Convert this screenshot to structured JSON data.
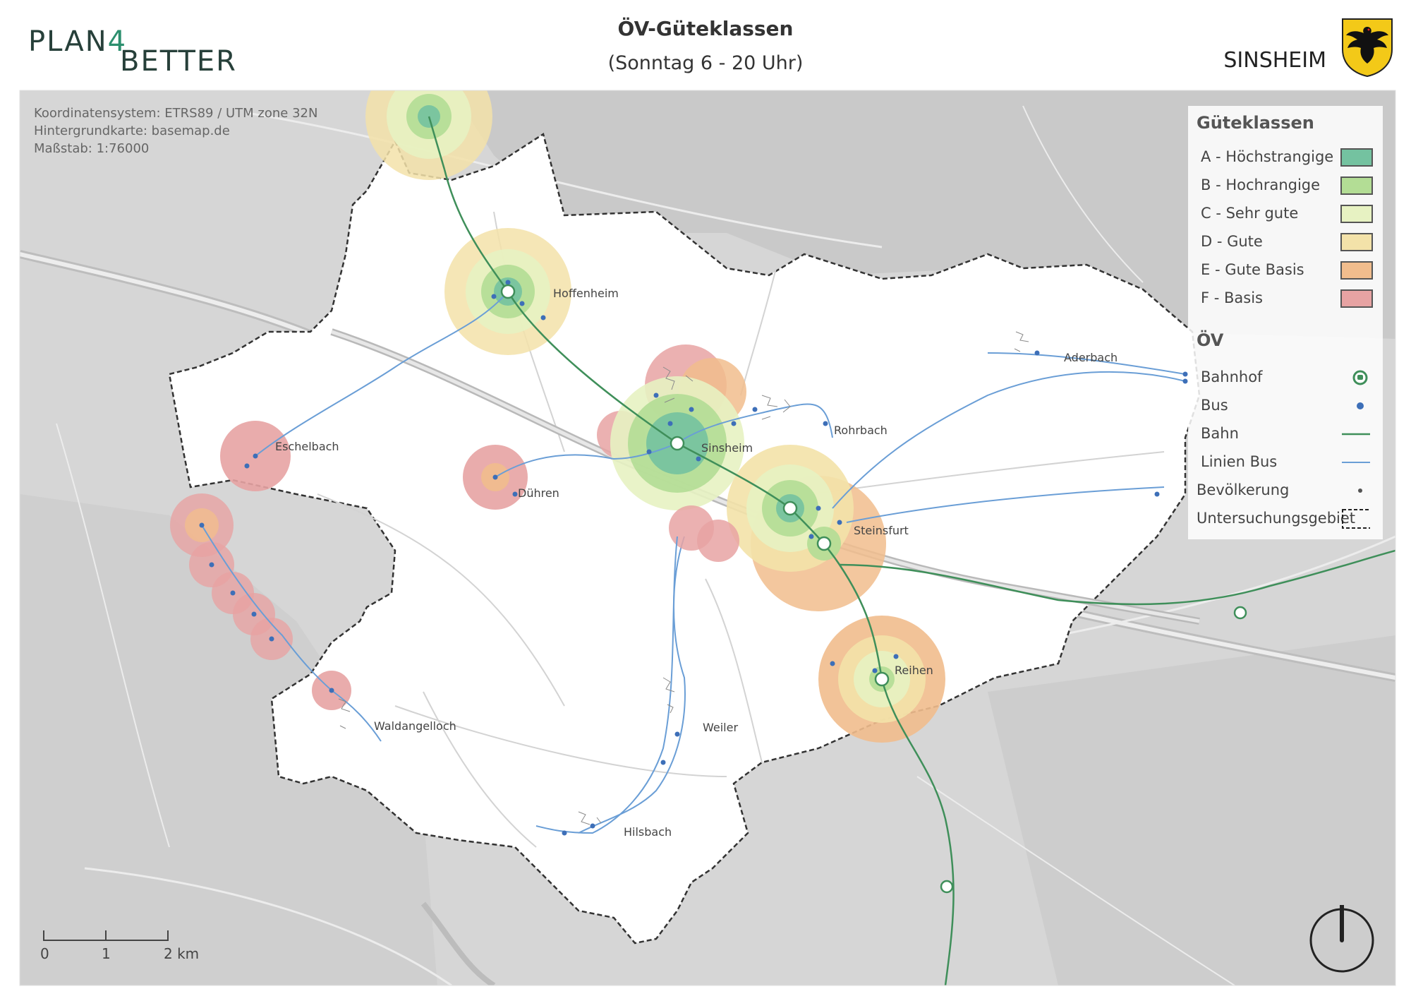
{
  "header": {
    "logo_part1": "PLAN",
    "logo_number": "4",
    "logo_part2": "BETTER",
    "title": "ÖV-Güteklassen",
    "subtitle": "(Sonntag 6 - 20 Uhr)",
    "city": "SINSHEIM",
    "crest_icon": "eagle-crest-icon"
  },
  "map_info": {
    "crs": "Koordinatensystem: ETRS89 / UTM zone 32N",
    "basemap": "Hintergrundkarte: basemap.de",
    "scale": "Maßstab: 1:76000"
  },
  "places": [
    {
      "name": "Hoffenheim"
    },
    {
      "name": "Sinsheim"
    },
    {
      "name": "Rohrbach"
    },
    {
      "name": "Eschelbach"
    },
    {
      "name": "Dühren"
    },
    {
      "name": "Steinsfurt"
    },
    {
      "name": "Aderbach"
    },
    {
      "name": "Reihen"
    },
    {
      "name": "Weiler"
    },
    {
      "name": "Waldangelloch"
    },
    {
      "name": "Hilsbach"
    }
  ],
  "legend": {
    "classes_title": "Güteklassen",
    "classes": [
      {
        "label": "A - Höchstrangige",
        "color": "#74c2a0"
      },
      {
        "label": "B - Hochrangige",
        "color": "#b3dd95"
      },
      {
        "label": "C - Sehr gute",
        "color": "#e7f2c2"
      },
      {
        "label": "D - Gute",
        "color": "#f3e2a9"
      },
      {
        "label": "E - Gute Basis",
        "color": "#f1bd8d"
      },
      {
        "label": "F - Basis",
        "color": "#e7a3a3"
      }
    ],
    "ov_title": "ÖV",
    "ov_items": [
      {
        "label": "Bahnhof",
        "icon": "train-station-icon"
      },
      {
        "label": "Bus",
        "icon": "bus-stop-icon"
      },
      {
        "label": "Bahn",
        "icon": "rail-line-icon"
      },
      {
        "label": "Linien Bus",
        "icon": "bus-line-icon"
      }
    ],
    "population_label": "Bevölkerung",
    "study_area_label": "Untersuchungsgebiet"
  },
  "scalebar": {
    "ticks": [
      "0",
      "1",
      "2 km"
    ]
  },
  "colors": {
    "rail": "#3f8f5a",
    "bus_line": "#6a9ed6",
    "bus_stop": "#3d6fb8",
    "area_outline": "#333333",
    "background_map": "#dcdcdc"
  }
}
